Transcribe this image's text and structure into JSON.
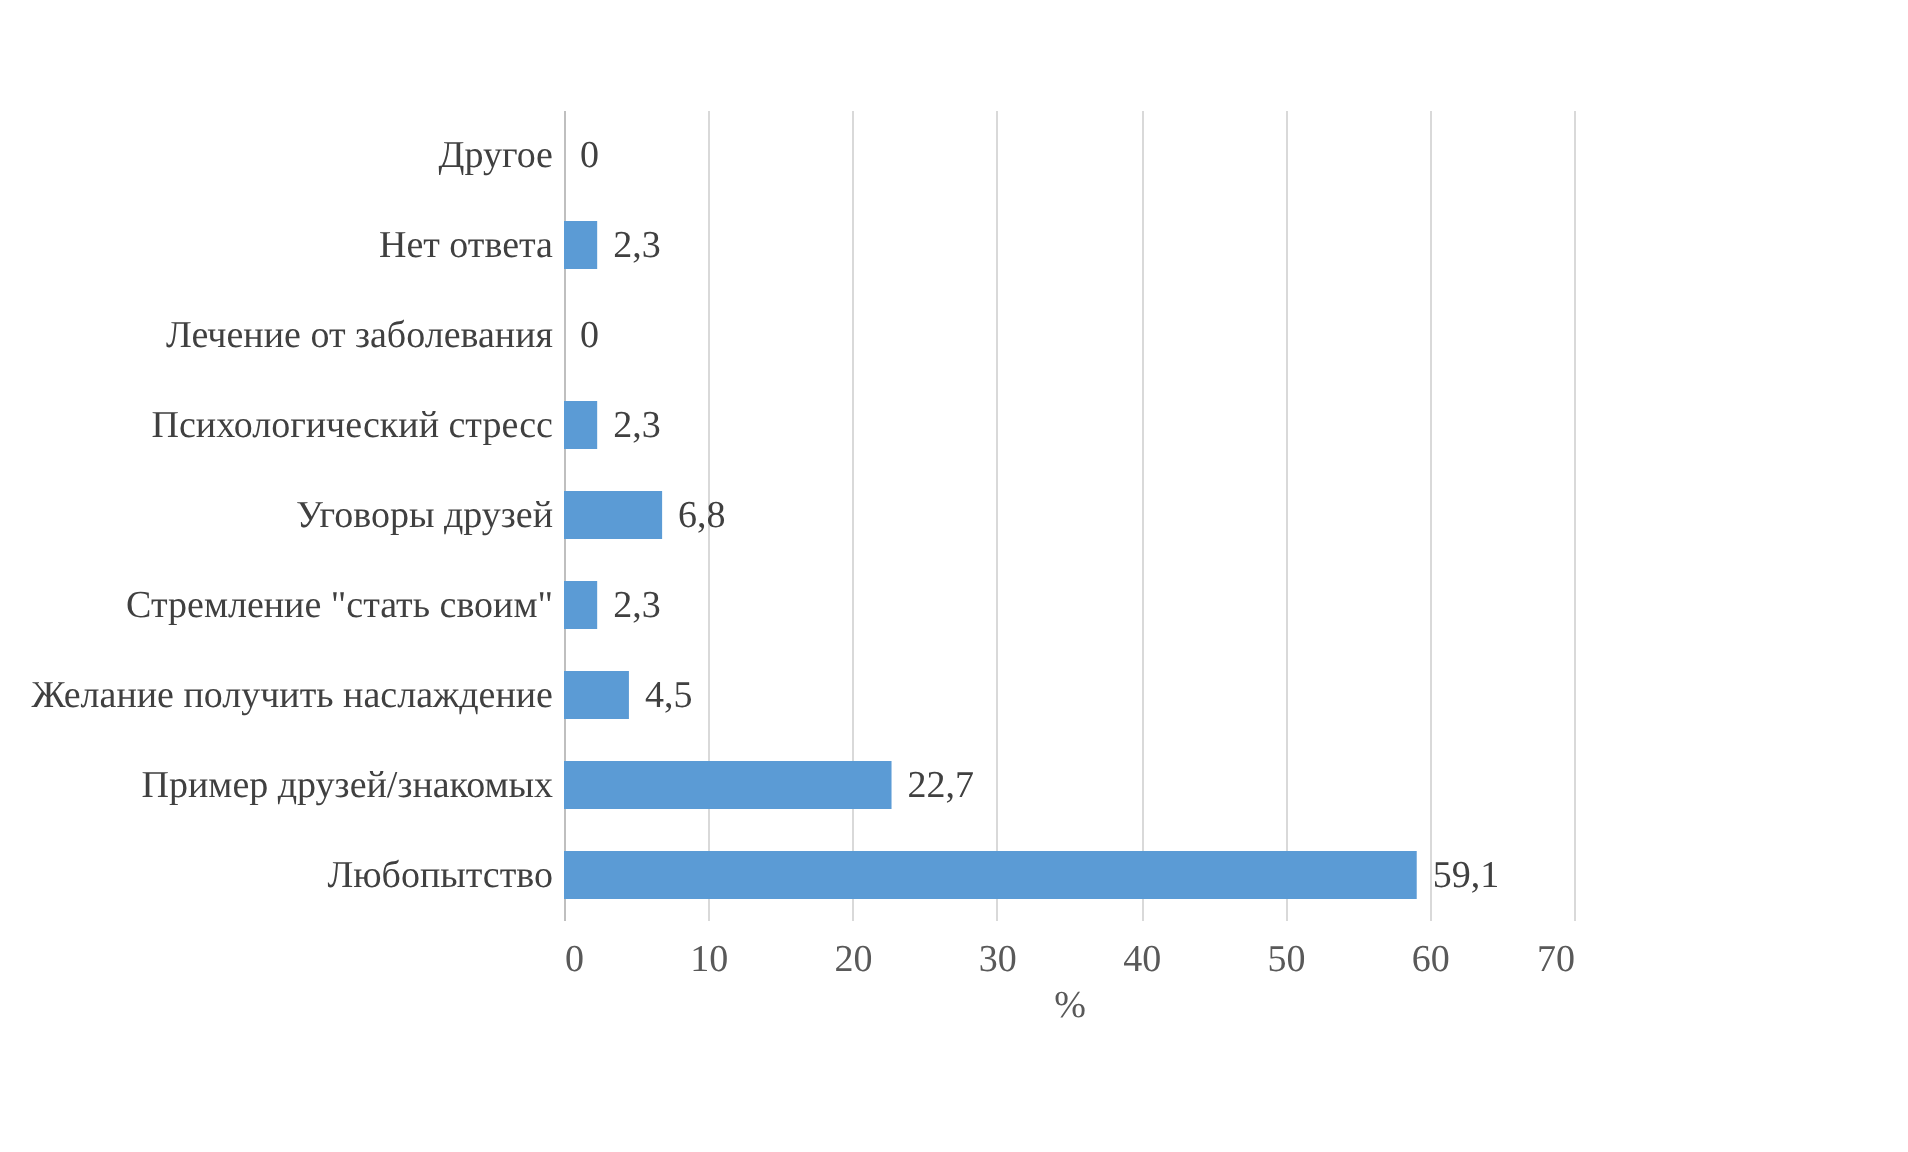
{
  "chart_data": {
    "type": "bar",
    "orientation": "horizontal",
    "categories": [
      "Другое",
      "Нет ответа",
      "Лечение от заболевания",
      "Психологический стресс",
      "Уговоры друзей",
      "Стремление \"стать своим\"",
      "Желание получить наслаждение",
      "Пример друзей/знакомых",
      "Любопытство"
    ],
    "values": [
      0,
      2.3,
      0,
      2.3,
      6.8,
      2.3,
      4.5,
      22.7,
      59.1
    ],
    "value_labels": [
      "0",
      "2,3",
      "0",
      "2,3",
      "6,8",
      "2,3",
      "4,5",
      "22,7",
      "59,1"
    ],
    "color": "#5b9bd5",
    "xlabel": "%",
    "xlim": [
      0,
      70
    ],
    "xticks": [
      0,
      10,
      20,
      30,
      40,
      50,
      60,
      70
    ],
    "grid": "x"
  }
}
